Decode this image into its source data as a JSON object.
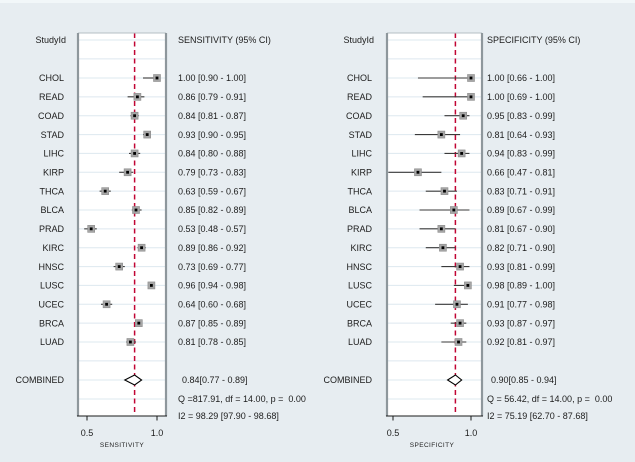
{
  "figure": {
    "background_color": "#e7edf1",
    "plot_bg_color": "#ffffff",
    "ref_line_color": "#c10534",
    "marker_color": "#a6a6a6",
    "marker_edge_color": "#8c8c8c",
    "marker_dot_color": "#000000",
    "whisker_color": "#3a3a3a",
    "gridline_color": "#dde8ef",
    "side_border_color": "#8e979c",
    "top_border_color": "#b5bfc4",
    "axis_line_color": "#1a1a1a",
    "diamond_fill": "#ffffff",
    "diamond_stroke": "#000000"
  },
  "chart_data": [
    {
      "type": "forest",
      "study_col_header": "StudyId",
      "value_col_header": "SENSITIVITY (95% CI)",
      "axis_label": "SENSITIVITY",
      "axis_ticks": [
        "0.5",
        "1.0"
      ],
      "axis_tick_values": [
        0.5,
        1.0
      ],
      "xlim": [
        0.43,
        1.07
      ],
      "studies": [
        {
          "id": "CHOL",
          "est": 1.0,
          "lo": 0.9,
          "hi": 1.0,
          "label": "1.00 [0.90 - 1.00]"
        },
        {
          "id": "READ",
          "est": 0.86,
          "lo": 0.79,
          "hi": 0.91,
          "label": "0.86 [0.79 - 0.91]"
        },
        {
          "id": "COAD",
          "est": 0.84,
          "lo": 0.81,
          "hi": 0.87,
          "label": "0.84 [0.81 - 0.87]"
        },
        {
          "id": "STAD",
          "est": 0.93,
          "lo": 0.9,
          "hi": 0.95,
          "label": "0.93 [0.90 - 0.95]"
        },
        {
          "id": "LIHC",
          "est": 0.84,
          "lo": 0.8,
          "hi": 0.88,
          "label": "0.84 [0.80 - 0.88]"
        },
        {
          "id": "KIRP",
          "est": 0.79,
          "lo": 0.73,
          "hi": 0.83,
          "label": "0.79 [0.73 - 0.83]"
        },
        {
          "id": "THCA",
          "est": 0.63,
          "lo": 0.59,
          "hi": 0.67,
          "label": "0.63 [0.59 - 0.67]"
        },
        {
          "id": "BLCA",
          "est": 0.85,
          "lo": 0.82,
          "hi": 0.89,
          "label": "0.85 [0.82 - 0.89]"
        },
        {
          "id": "PRAD",
          "est": 0.53,
          "lo": 0.48,
          "hi": 0.57,
          "label": "0.53 [0.48 - 0.57]"
        },
        {
          "id": "KIRC",
          "est": 0.89,
          "lo": 0.86,
          "hi": 0.92,
          "label": "0.89 [0.86 - 0.92]"
        },
        {
          "id": "HNSC",
          "est": 0.73,
          "lo": 0.69,
          "hi": 0.77,
          "label": "0.73 [0.69 - 0.77]"
        },
        {
          "id": "LUSC",
          "est": 0.96,
          "lo": 0.94,
          "hi": 0.98,
          "label": "0.96 [0.94 - 0.98]"
        },
        {
          "id": "UCEC",
          "est": 0.64,
          "lo": 0.6,
          "hi": 0.68,
          "label": "0.64 [0.60 - 0.68]"
        },
        {
          "id": "BRCA",
          "est": 0.87,
          "lo": 0.85,
          "hi": 0.89,
          "label": "0.87 [0.85 - 0.89]"
        },
        {
          "id": "LUAD",
          "est": 0.81,
          "lo": 0.78,
          "hi": 0.85,
          "label": "0.81 [0.78 - 0.85]"
        }
      ],
      "combined": {
        "id": "COMBINED",
        "est": 0.84,
        "lo": 0.77,
        "hi": 0.89,
        "label": "0.84[0.77 - 0.89]"
      },
      "heterogeneity": [
        "Q =817.91, df = 14.00, p =  0.00",
        "I2 = 98.29 [97.90 - 98.68]"
      ]
    },
    {
      "type": "forest",
      "study_col_header": "StudyId",
      "value_col_header": "SPECIFICITY (95% CI)",
      "axis_label": "SPECIFICITY",
      "axis_ticks": [
        "0.5",
        "1.0"
      ],
      "axis_tick_values": [
        0.5,
        1.0
      ],
      "xlim": [
        0.46,
        1.07
      ],
      "studies": [
        {
          "id": "CHOL",
          "est": 1.0,
          "lo": 0.66,
          "hi": 1.0,
          "label": "1.00 [0.66 - 1.00]"
        },
        {
          "id": "READ",
          "est": 1.0,
          "lo": 0.69,
          "hi": 1.0,
          "label": "1.00 [0.69 - 1.00]"
        },
        {
          "id": "COAD",
          "est": 0.95,
          "lo": 0.83,
          "hi": 0.99,
          "label": "0.95 [0.83 - 0.99]"
        },
        {
          "id": "STAD",
          "est": 0.81,
          "lo": 0.64,
          "hi": 0.93,
          "label": "0.81 [0.64 - 0.93]"
        },
        {
          "id": "LIHC",
          "est": 0.94,
          "lo": 0.83,
          "hi": 0.99,
          "label": "0.94 [0.83 - 0.99]"
        },
        {
          "id": "KIRP",
          "est": 0.66,
          "lo": 0.47,
          "hi": 0.81,
          "label": "0.66 [0.47 - 0.81]"
        },
        {
          "id": "THCA",
          "est": 0.83,
          "lo": 0.71,
          "hi": 0.91,
          "label": "0.83 [0.71 - 0.91]"
        },
        {
          "id": "BLCA",
          "est": 0.89,
          "lo": 0.67,
          "hi": 0.99,
          "label": "0.89 [0.67 - 0.99]"
        },
        {
          "id": "PRAD",
          "est": 0.81,
          "lo": 0.67,
          "hi": 0.9,
          "label": "0.81 [0.67 - 0.90]"
        },
        {
          "id": "KIRC",
          "est": 0.82,
          "lo": 0.71,
          "hi": 0.9,
          "label": "0.82 [0.71 - 0.90]"
        },
        {
          "id": "HNSC",
          "est": 0.93,
          "lo": 0.81,
          "hi": 0.99,
          "label": "0.93 [0.81 - 0.99]"
        },
        {
          "id": "LUSC",
          "est": 0.98,
          "lo": 0.89,
          "hi": 1.0,
          "label": "0.98 [0.89 - 1.00]"
        },
        {
          "id": "UCEC",
          "est": 0.91,
          "lo": 0.77,
          "hi": 0.98,
          "label": "0.91 [0.77 - 0.98]"
        },
        {
          "id": "BRCA",
          "est": 0.93,
          "lo": 0.87,
          "hi": 0.97,
          "label": "0.93 [0.87 - 0.97]"
        },
        {
          "id": "LUAD",
          "est": 0.92,
          "lo": 0.81,
          "hi": 0.97,
          "label": "0.92 [0.81 - 0.97]"
        }
      ],
      "combined": {
        "id": "COMBINED",
        "est": 0.9,
        "lo": 0.85,
        "hi": 0.94,
        "label": "0.90[0.85 - 0.94]"
      },
      "heterogeneity": [
        "Q = 56.42, df = 14.00, p =  0.00",
        "I2 = 75.19 [62.70 - 87.68]"
      ]
    }
  ]
}
